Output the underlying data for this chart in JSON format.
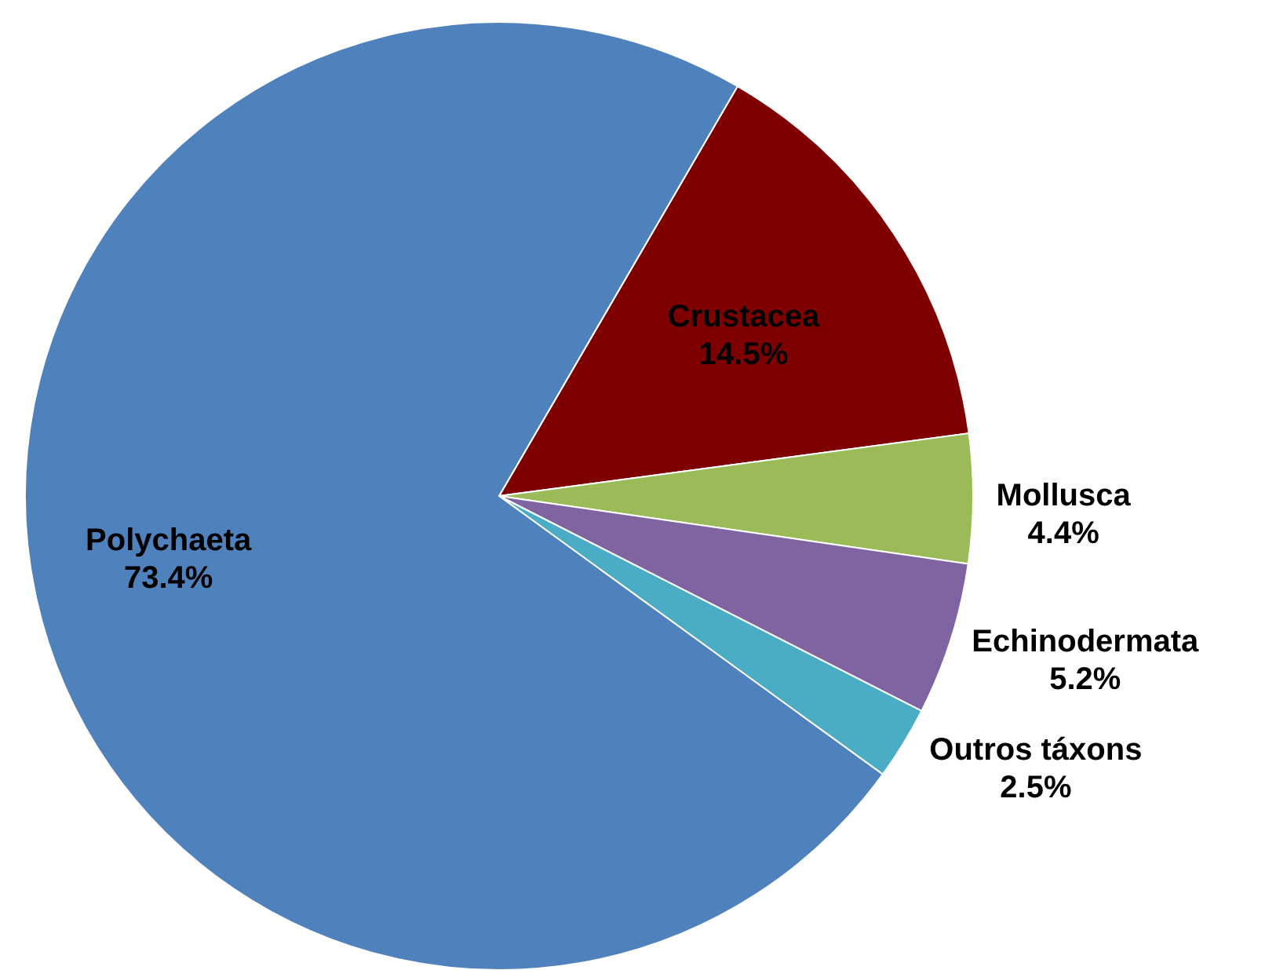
{
  "chart_data": {
    "type": "pie",
    "categories": [
      "Crustacea",
      "Mollusca",
      "Echinodermata",
      "Outros táxons",
      "Polychaeta"
    ],
    "values": [
      14.5,
      4.4,
      5.2,
      2.5,
      73.4
    ],
    "colors": [
      "#7f0000",
      "#9bbb59",
      "#8064a2",
      "#4bacc6",
      "#4f81bd"
    ],
    "value_labels": [
      "14.5%",
      "4.4%",
      "5.2%",
      "2.5%",
      "73.4%"
    ]
  }
}
